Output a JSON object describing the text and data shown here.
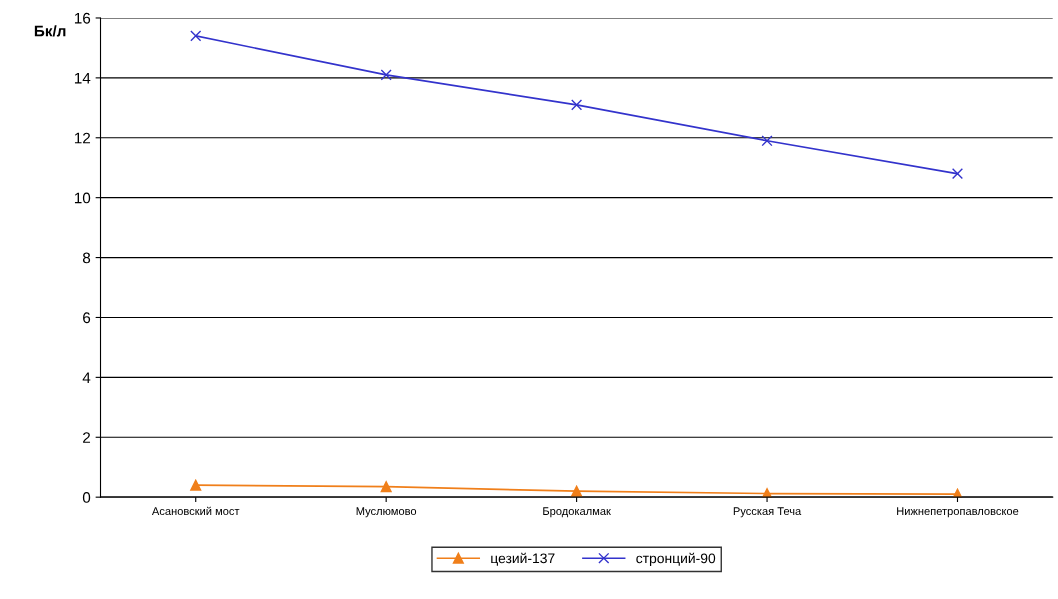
{
  "chart_data": {
    "type": "line",
    "ylabel": "Бк/л",
    "categories": [
      "Асановский мост",
      "Муслюмово",
      "Бродокалмак",
      "Русская Теча",
      "Нижнепетропавловское"
    ],
    "series": [
      {
        "name": "цезий-137",
        "color": "#f07f1a",
        "marker": "triangle",
        "values": [
          0.4,
          0.35,
          0.2,
          0.12,
          0.1
        ]
      },
      {
        "name": "стронций-90",
        "color": "#3333cc",
        "marker": "cross",
        "values": [
          15.4,
          14.1,
          13.1,
          11.9,
          10.8
        ]
      }
    ],
    "ylim": [
      0,
      16
    ],
    "yticks": [
      0,
      2,
      4,
      6,
      8,
      10,
      12,
      14,
      16
    ],
    "grid": "y",
    "legend": "bottom",
    "line_style": "solid"
  }
}
